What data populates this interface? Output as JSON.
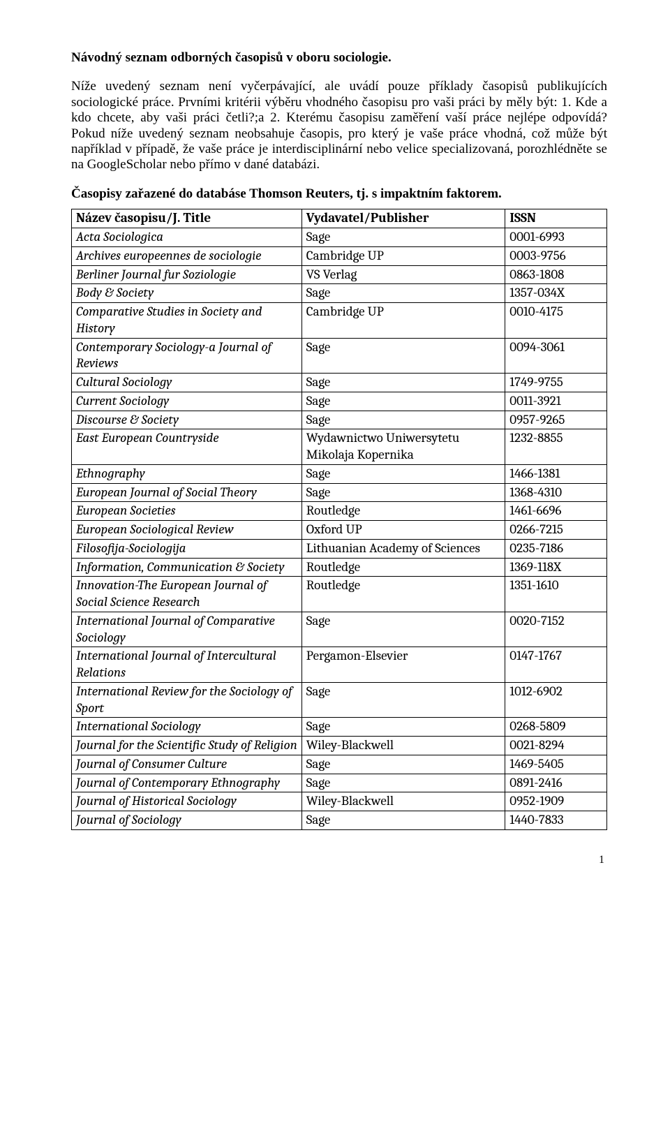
{
  "title": "Návodný seznam odborných časopisů v oboru sociologie.",
  "para1": "Níže uvedený seznam není vyčerpávající, ale uvádí pouze příklady časopisů publikujících sociologické práce. Prvními kritérii výběru vhodného časopisu pro vaši práci by měly být: 1. Kde a kdo chcete, aby vaši práci četli?;a 2. Kterému časopisu zaměření vaší práce nejlépe odpovídá? Pokud níže uvedený seznam neobsahuje časopis, pro který je vaše práce vhodná, což může být například v případě, že vaše práce je interdisciplinární nebo velice specializovaná, porozhlédněte se na GoogleScholar nebo přímo v dané databázi.",
  "para2": "Časopisy zařazené do databáse Thomson Reuters, tj. s impaktním faktorem.",
  "headers": {
    "title": "Název časopisu/J. Title",
    "publisher": "Vydavatel/Publisher",
    "issn": "ISSN"
  },
  "rows": [
    {
      "t": "Acta Sociologica",
      "p": "Sage",
      "i": "0001-6993"
    },
    {
      "t": "Archives europeennes de sociologie",
      "p": "Cambridge UP",
      "i": "0003-9756"
    },
    {
      "t": "Berliner Journal fur Soziologie",
      "p": "VS Verlag",
      "i": "0863-1808"
    },
    {
      "t": "Body & Society",
      "p": "Sage",
      "i": "1357-034X"
    },
    {
      "t": "Comparative Studies in Society and History",
      "p": "Cambridge UP",
      "i": "0010-4175"
    },
    {
      "t": "Contemporary Sociology-a Journal of Reviews",
      "p": "Sage",
      "i": "0094-3061"
    },
    {
      "t": "Cultural Sociology",
      "p": "Sage",
      "i": "1749-9755"
    },
    {
      "t": "Current Sociology",
      "p": "Sage",
      "i": "0011-3921"
    },
    {
      "t": "Discourse & Society",
      "p": "Sage",
      "i": "0957-9265"
    },
    {
      "t": "East European Countryside",
      "p": "Wydawnictwo Uniwersytetu Mikolaja Kopernika",
      "i": "1232-8855"
    },
    {
      "t": "Ethnography",
      "p": "Sage",
      "i": "1466-1381"
    },
    {
      "t": "European Journal of Social Theory",
      "p": "Sage",
      "i": "1368-4310"
    },
    {
      "t": "European Societies",
      "p": "Routledge",
      "i": "1461-6696"
    },
    {
      "t": "European Sociological Review",
      "p": "Oxford UP",
      "i": "0266-7215"
    },
    {
      "t": "Filosofija-Sociologija",
      "p": "Lithuanian Academy of Sciences",
      "i": "0235-7186"
    },
    {
      "t": "Information, Communication & Society",
      "p": "Routledge",
      "i": "1369-118X"
    },
    {
      "t": "Innovation-The European Journal of Social Science Research",
      "p": "Routledge",
      "i": "1351-1610"
    },
    {
      "t": "International Journal of Comparative Sociology",
      "p": "Sage",
      "i": "0020-7152"
    },
    {
      "t": "International Journal of Intercultural Relations",
      "p": "Pergamon-Elsevier",
      "i": "0147-1767"
    },
    {
      "t": "International Review for the Sociology of Sport",
      "p": "Sage",
      "i": "1012-6902"
    },
    {
      "t": "International Sociology",
      "p": "Sage",
      "i": "0268-5809"
    },
    {
      "t": "Journal for the Scientific Study of Religion",
      "p": "Wiley-Blackwell",
      "i": "0021-8294"
    },
    {
      "t": "Journal of Consumer Culture",
      "p": "Sage",
      "i": "1469-5405"
    },
    {
      "t": "Journal of Contemporary Ethnography",
      "p": "Sage",
      "i": "0891-2416"
    },
    {
      "t": "Journal of Historical Sociology",
      "p": "Wiley-Blackwell",
      "i": "0952-1909"
    },
    {
      "t": "Journal of Sociology",
      "p": "Sage",
      "i": "1440-7833"
    }
  ],
  "pagenum": "1"
}
